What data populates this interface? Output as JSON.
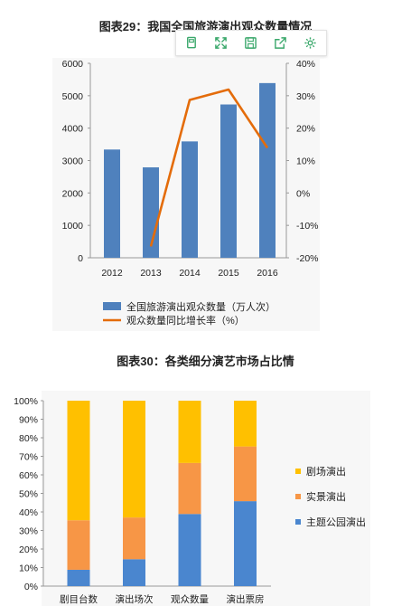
{
  "toolbar": {
    "icons": [
      "copy-icon",
      "expand-icon",
      "save-icon",
      "share-icon",
      "settings-icon"
    ]
  },
  "chart_data": [
    {
      "type": "bar",
      "title": "图表29：我国全国旅游演出观众数量情况",
      "categories": [
        "2012",
        "2013",
        "2014",
        "2015",
        "2016"
      ],
      "series": [
        {
          "name": "全国旅游演出观众数量（万人次）",
          "kind": "bar",
          "axis": "left",
          "values": [
            3340,
            2790,
            3590,
            4730,
            5390
          ],
          "color": "#4f81bd"
        },
        {
          "name": "观众数量同比增长率（%）",
          "kind": "line",
          "axis": "right",
          "values": [
            null,
            -16.5,
            28.7,
            31.9,
            13.9
          ],
          "color": "#e46c0a"
        }
      ],
      "ylim": [
        0,
        6000
      ],
      "yticks": [
        "0",
        "1000",
        "2000",
        "3000",
        "4000",
        "5000",
        "6000"
      ],
      "y2lim": [
        -20,
        40
      ],
      "y2ticks": [
        "-20%",
        "-10%",
        "0%",
        "10%",
        "20%",
        "30%",
        "40%"
      ],
      "legend": "bottom"
    },
    {
      "type": "bar",
      "stacked": true,
      "percent": true,
      "title": "图表30：各类细分演艺市场占比情",
      "categories": [
        "剧目台数",
        "演出场次",
        "观众数量",
        "演出票房"
      ],
      "series": [
        {
          "name": "主题公园演出",
          "values": [
            8.8,
            14.5,
            38.9,
            45.8
          ],
          "color": "#4a86cf"
        },
        {
          "name": "实景演出",
          "values": [
            26.7,
            22.5,
            27.5,
            29.5
          ],
          "color": "#f79646"
        },
        {
          "name": "剧场演出",
          "values": [
            64.5,
            63.0,
            33.6,
            24.7
          ],
          "color": "#ffc000"
        }
      ],
      "ylim": [
        0,
        100
      ],
      "yticks": [
        "0%",
        "10%",
        "20%",
        "30%",
        "40%",
        "50%",
        "60%",
        "70%",
        "80%",
        "90%",
        "100%"
      ],
      "legend": "right"
    }
  ]
}
